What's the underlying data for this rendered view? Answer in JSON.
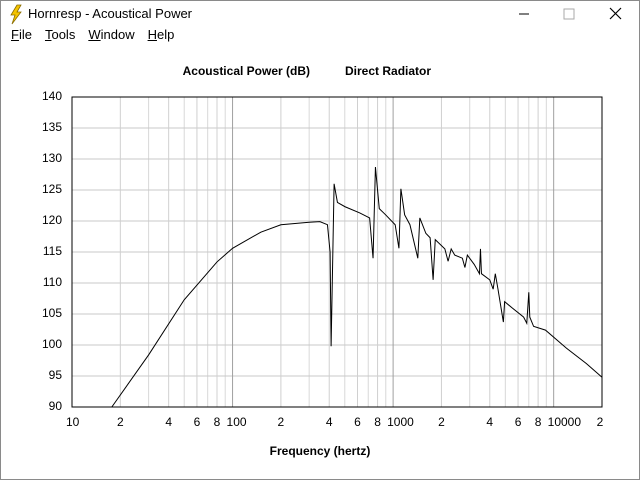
{
  "window": {
    "title": "Hornresp - Acoustical Power",
    "menu": [
      "File",
      "Tools",
      "Window",
      "Help"
    ]
  },
  "chart_data": {
    "type": "line",
    "title": "Acoustical Power (dB)",
    "subtitle": "Direct Radiator",
    "x_label": "Frequency (hertz)",
    "xscale": "log",
    "grid": true,
    "color": "#000000",
    "xlim": [
      10,
      20000
    ],
    "ylim": [
      90,
      140
    ],
    "yticks": [
      90,
      95,
      100,
      105,
      110,
      115,
      120,
      125,
      130,
      135,
      140
    ],
    "xticks": [
      10,
      {
        "value": 20,
        "label": "2"
      },
      {
        "value": 40,
        "label": "4"
      },
      {
        "value": 60,
        "label": "6"
      },
      {
        "value": 80,
        "label": "8"
      },
      100,
      {
        "value": 200,
        "label": "2"
      },
      {
        "value": 400,
        "label": "4"
      },
      {
        "value": 600,
        "label": "6"
      },
      {
        "value": 800,
        "label": "8"
      },
      1000,
      {
        "value": 2000,
        "label": "2"
      },
      {
        "value": 4000,
        "label": "4"
      },
      {
        "value": 6000,
        "label": "6"
      },
      {
        "value": 8000,
        "label": "8"
      },
      10000,
      {
        "value": 20000,
        "label": "2"
      }
    ],
    "xminorticks": [
      30,
      50,
      70,
      90,
      300,
      500,
      700,
      900,
      3000,
      5000,
      7000,
      9000
    ],
    "x": [
      17.7,
      30,
      50,
      80,
      100,
      150,
      200,
      300,
      350,
      390,
      405,
      411,
      429,
      450,
      502,
      620,
      714,
      750,
      776,
      820,
      898,
      1030,
      1087,
      1118,
      1180,
      1273,
      1425,
      1467,
      1600,
      1700,
      1775,
      1830,
      2100,
      2200,
      2300,
      2420,
      2700,
      2800,
      2900,
      3200,
      3450,
      3500,
      3550,
      4000,
      4200,
      4330,
      4500,
      4860,
      4950,
      5500,
      6500,
      6800,
      7000,
      7100,
      7500,
      8890,
      12000,
      16000,
      20000
    ],
    "values": [
      90,
      98.4,
      107.3,
      113.4,
      115.6,
      118.2,
      119.4,
      119.8,
      119.9,
      119.4,
      115,
      99.8,
      126,
      123,
      122.3,
      121.3,
      120.5,
      114,
      128.7,
      122,
      121,
      119.4,
      115.6,
      125.2,
      121,
      119.4,
      114,
      120.5,
      118,
      117.3,
      110.5,
      117,
      115.5,
      113.5,
      115.5,
      114.5,
      114,
      112.5,
      114.5,
      113,
      111.5,
      115.5,
      111.5,
      110.5,
      109,
      111.5,
      109,
      103.7,
      107,
      106,
      104.5,
      103.5,
      108.5,
      104.5,
      103,
      102.4,
      99.5,
      97,
      94.8
    ]
  }
}
